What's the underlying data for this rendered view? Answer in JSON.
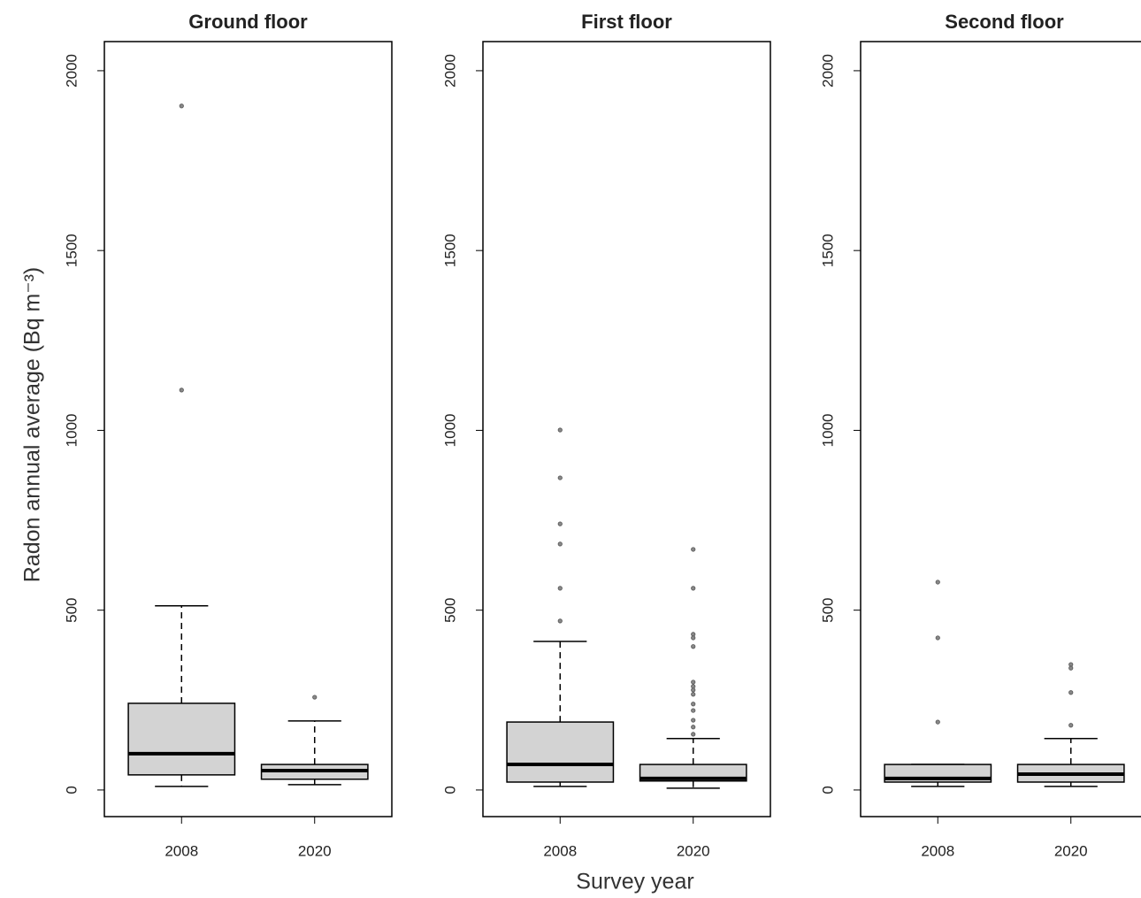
{
  "chart_data": [
    {
      "type": "box",
      "title": "Ground floor",
      "ylabel": "Radon annual average (Bq m⁻³)",
      "categories": [
        "2008",
        "2020"
      ],
      "color": "#d3d3d3",
      "ylim": [
        -74,
        2081
      ],
      "yticks": [
        0,
        500,
        1000,
        1500,
        2000
      ],
      "boxes": [
        {
          "min": 10,
          "q1": 42,
          "median": 101,
          "q3": 241,
          "max": 512,
          "outliers": [
            1902,
            1112
          ]
        },
        {
          "min": 15,
          "q1": 30,
          "median": 54,
          "q3": 71,
          "max": 192,
          "outliers": [
            258
          ]
        }
      ]
    },
    {
      "type": "box",
      "title": "First floor",
      "xlabel": "Survey year",
      "categories": [
        "2008",
        "2020"
      ],
      "color": "#d3d3d3",
      "ylim": [
        -74,
        2081
      ],
      "yticks": [
        0,
        500,
        1000,
        1500,
        2000
      ],
      "boxes": [
        {
          "min": 10,
          "q1": 22,
          "median": 71,
          "q3": 189,
          "max": 413,
          "outliers": [
            1001,
            868,
            740,
            684,
            561,
            470
          ]
        },
        {
          "min": 5,
          "q1": 25,
          "median": 32,
          "q3": 71,
          "max": 143,
          "outliers": [
            669,
            561,
            433,
            423,
            399,
            300,
            288,
            278,
            266,
            239,
            221,
            194,
            175,
            155
          ]
        }
      ]
    },
    {
      "type": "box",
      "title": "Second floor",
      "categories": [
        "2008",
        "2020"
      ],
      "color": "#d3d3d3",
      "ylim": [
        -74,
        2081
      ],
      "yticks": [
        0,
        500,
        1000,
        1500,
        2000
      ],
      "boxes": [
        {
          "min": 10,
          "q1": 22,
          "median": 32,
          "q3": 71,
          "max": 71,
          "outliers": [
            578,
            423,
            189
          ]
        },
        {
          "min": 10,
          "q1": 22,
          "median": 44,
          "q3": 71,
          "max": 143,
          "outliers": [
            349,
            339,
            271,
            180
          ]
        }
      ]
    }
  ]
}
